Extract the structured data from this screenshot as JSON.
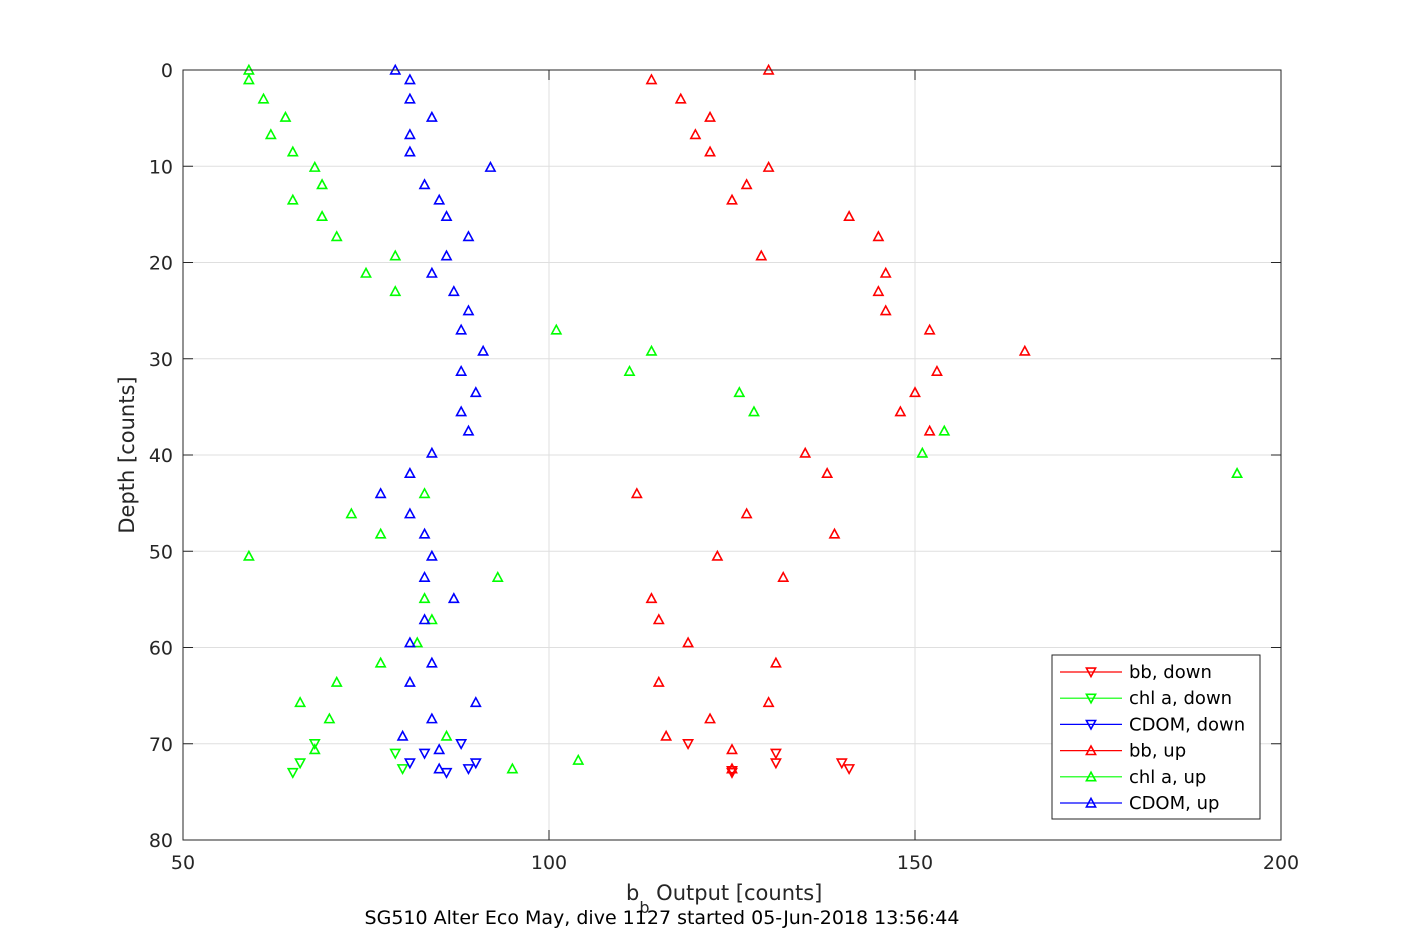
{
  "chart_data": {
    "type": "scatter",
    "xlabel": "b_b Output [counts]",
    "xlabel_main": "b",
    "xlabel_sub": "b",
    "xlabel_rest": " Output [counts]",
    "ylabel": "Depth [counts]",
    "caption": "SG510 Alter Eco May, dive 1127 started 05-Jun-2018 13:56:44",
    "xlim": [
      50,
      200
    ],
    "ylim": [
      0,
      80
    ],
    "y_reversed": true,
    "x_ticks": [
      50,
      100,
      150,
      200
    ],
    "y_ticks": [
      0,
      10,
      20,
      30,
      40,
      50,
      60,
      70,
      80
    ],
    "grid": true,
    "legend_position": "bottom-right",
    "series": [
      {
        "name": "bb, down",
        "color": "#ff0000",
        "marker": "triangle-down",
        "points": [
          [
            119,
            70.0
          ],
          [
            131,
            71.0
          ],
          [
            131,
            72.0
          ],
          [
            140,
            72.0
          ],
          [
            141,
            72.6
          ],
          [
            125,
            72.8
          ],
          [
            125,
            73.0
          ]
        ]
      },
      {
        "name": "chl a, down",
        "color": "#00ff00",
        "marker": "triangle-down",
        "points": [
          [
            68,
            70.0
          ],
          [
            79,
            71.0
          ],
          [
            66,
            72.0
          ],
          [
            80,
            72.6
          ],
          [
            65,
            73.0
          ]
        ]
      },
      {
        "name": "CDOM, down",
        "color": "#0000ff",
        "marker": "triangle-down",
        "points": [
          [
            88,
            70.0
          ],
          [
            83,
            71.0
          ],
          [
            81,
            72.0
          ],
          [
            90,
            72.0
          ],
          [
            89,
            72.6
          ],
          [
            86,
            73.0
          ]
        ]
      },
      {
        "name": "bb, up",
        "color": "#ff0000",
        "marker": "triangle-up",
        "points": [
          [
            130,
            0.0
          ],
          [
            114,
            1.0
          ],
          [
            118,
            3.0
          ],
          [
            122,
            4.9
          ],
          [
            120,
            6.7
          ],
          [
            122,
            8.5
          ],
          [
            130,
            10.1
          ],
          [
            127,
            11.9
          ],
          [
            125,
            13.5
          ],
          [
            141,
            15.2
          ],
          [
            145,
            17.3
          ],
          [
            129,
            19.3
          ],
          [
            146,
            21.1
          ],
          [
            145,
            23.0
          ],
          [
            146,
            25.0
          ],
          [
            152,
            27.0
          ],
          [
            165,
            29.2
          ],
          [
            153,
            31.3
          ],
          [
            150,
            33.5
          ],
          [
            148,
            35.5
          ],
          [
            152,
            37.5
          ],
          [
            135,
            39.8
          ],
          [
            138,
            41.9
          ],
          [
            112,
            44.0
          ],
          [
            127,
            46.1
          ],
          [
            139,
            48.2
          ],
          [
            123,
            50.5
          ],
          [
            132,
            52.7
          ],
          [
            114,
            54.9
          ],
          [
            115,
            57.1
          ],
          [
            119,
            59.5
          ],
          [
            131,
            61.6
          ],
          [
            115,
            63.6
          ],
          [
            130,
            65.7
          ],
          [
            122,
            67.4
          ],
          [
            116,
            69.2
          ],
          [
            125,
            70.6
          ],
          [
            125,
            72.6
          ]
        ]
      },
      {
        "name": "chl a, up",
        "color": "#00ff00",
        "marker": "triangle-up",
        "points": [
          [
            59,
            0.0
          ],
          [
            59,
            1.0
          ],
          [
            61,
            3.0
          ],
          [
            64,
            4.9
          ],
          [
            62,
            6.7
          ],
          [
            65,
            8.5
          ],
          [
            68,
            10.1
          ],
          [
            69,
            11.9
          ],
          [
            65,
            13.5
          ],
          [
            69,
            15.2
          ],
          [
            71,
            17.3
          ],
          [
            79,
            19.3
          ],
          [
            75,
            21.1
          ],
          [
            79,
            23.0
          ],
          [
            101,
            27.0
          ],
          [
            114,
            29.2
          ],
          [
            111,
            31.3
          ],
          [
            126,
            33.5
          ],
          [
            128,
            35.5
          ],
          [
            154,
            37.5
          ],
          [
            151,
            39.8
          ],
          [
            194,
            41.9
          ],
          [
            83,
            44.0
          ],
          [
            73,
            46.1
          ],
          [
            77,
            48.2
          ],
          [
            59,
            50.5
          ],
          [
            93,
            52.7
          ],
          [
            83,
            54.9
          ],
          [
            84,
            57.1
          ],
          [
            82,
            59.5
          ],
          [
            77,
            61.6
          ],
          [
            71,
            63.6
          ],
          [
            66,
            65.7
          ],
          [
            70,
            67.4
          ],
          [
            86,
            69.2
          ],
          [
            68,
            70.6
          ],
          [
            104,
            71.7
          ],
          [
            95,
            72.6
          ]
        ]
      },
      {
        "name": "CDOM, up",
        "color": "#0000ff",
        "marker": "triangle-up",
        "points": [
          [
            79,
            0.0
          ],
          [
            81,
            1.0
          ],
          [
            81,
            3.0
          ],
          [
            84,
            4.9
          ],
          [
            81,
            6.7
          ],
          [
            81,
            8.5
          ],
          [
            92,
            10.1
          ],
          [
            83,
            11.9
          ],
          [
            85,
            13.5
          ],
          [
            86,
            15.2
          ],
          [
            89,
            17.3
          ],
          [
            86,
            19.3
          ],
          [
            84,
            21.1
          ],
          [
            87,
            23.0
          ],
          [
            89,
            25.0
          ],
          [
            88,
            27.0
          ],
          [
            91,
            29.2
          ],
          [
            88,
            31.3
          ],
          [
            90,
            33.5
          ],
          [
            88,
            35.5
          ],
          [
            89,
            37.5
          ],
          [
            84,
            39.8
          ],
          [
            81,
            41.9
          ],
          [
            77,
            44.0
          ],
          [
            81,
            46.1
          ],
          [
            83,
            48.2
          ],
          [
            84,
            50.5
          ],
          [
            83,
            52.7
          ],
          [
            87,
            54.9
          ],
          [
            83,
            57.1
          ],
          [
            81,
            59.5
          ],
          [
            84,
            61.6
          ],
          [
            81,
            63.6
          ],
          [
            90,
            65.7
          ],
          [
            84,
            67.4
          ],
          [
            80,
            69.2
          ],
          [
            85,
            70.6
          ],
          [
            85,
            72.6
          ]
        ]
      }
    ]
  }
}
